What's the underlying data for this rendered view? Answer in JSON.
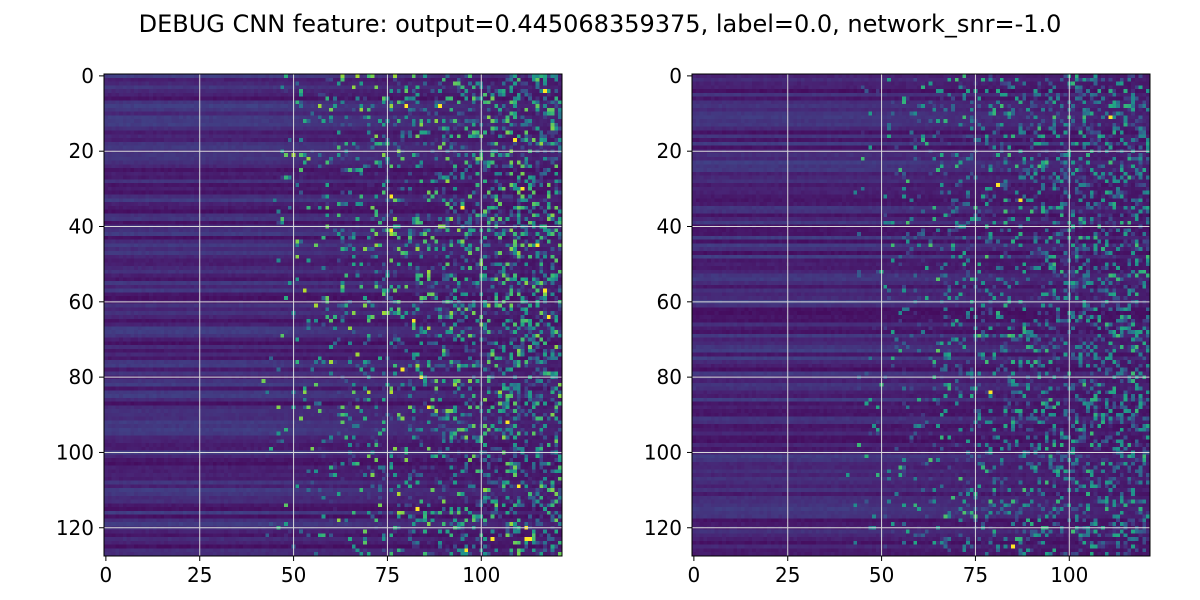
{
  "title": "DEBUG CNN feature: output=0.445068359375, label=0.0, network_snr=-1.0",
  "chart_data": [
    {
      "type": "heatmap",
      "rows": 128,
      "cols": 122,
      "colormap": "viridis",
      "xticks": [
        0,
        25,
        50,
        75,
        100
      ],
      "yticks": [
        0,
        20,
        40,
        60,
        80,
        100,
        120
      ],
      "xlim": [
        -0.5,
        121.5
      ],
      "ylim": [
        127.5,
        -0.5
      ],
      "grid": true,
      "title": "",
      "xlabel": "",
      "ylabel": "",
      "hot_pixels": [
        [
          4,
          117
        ],
        [
          8,
          80
        ],
        [
          8,
          89
        ],
        [
          17,
          109
        ],
        [
          30,
          111
        ],
        [
          32,
          76
        ],
        [
          35,
          95
        ],
        [
          41,
          76
        ],
        [
          45,
          115
        ],
        [
          57,
          117
        ],
        [
          64,
          118
        ],
        [
          65,
          82
        ],
        [
          78,
          79
        ],
        [
          80,
          84
        ],
        [
          88,
          86
        ],
        [
          92,
          107
        ],
        [
          109,
          110
        ],
        [
          115,
          83
        ],
        [
          120,
          112
        ],
        [
          123,
          103
        ],
        [
          123,
          112
        ],
        [
          123,
          113
        ],
        [
          126,
          96
        ]
      ]
    },
    {
      "type": "heatmap",
      "rows": 128,
      "cols": 122,
      "colormap": "viridis",
      "xticks": [
        0,
        25,
        50,
        75,
        100
      ],
      "yticks": [
        0,
        20,
        40,
        60,
        80,
        100,
        120
      ],
      "xlim": [
        -0.5,
        121.5
      ],
      "ylim": [
        127.5,
        -0.5
      ],
      "grid": true,
      "title": "",
      "xlabel": "",
      "ylabel": "",
      "hot_pixels": [
        [
          84,
          79
        ],
        [
          125,
          85
        ],
        [
          11,
          111
        ],
        [
          29,
          81
        ],
        [
          33,
          87
        ]
      ]
    }
  ],
  "colors": {
    "grid": "#d9d9d9",
    "axes": "#000000",
    "background": "#ffffff"
  }
}
